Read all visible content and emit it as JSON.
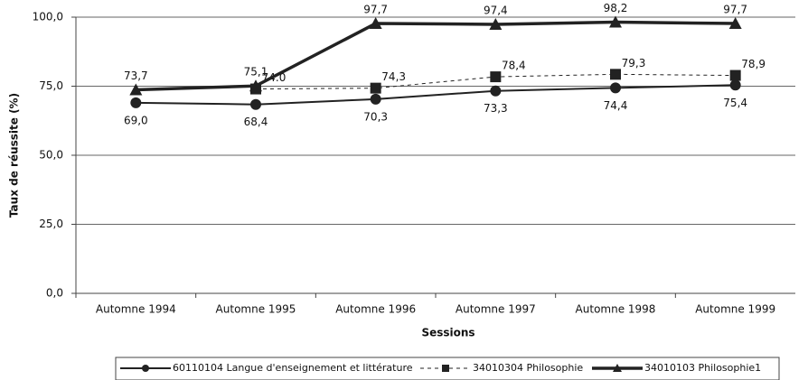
{
  "chart_data": {
    "type": "line",
    "y_label": "Taux de réussite (%)",
    "x_label": "Sessions",
    "categories": [
      "Automne 1994",
      "Automne 1995",
      "Automne 1996",
      "Automne 1997",
      "Automne 1998",
      "Automne 1999"
    ],
    "ylim": [
      0,
      100
    ],
    "yticks": [
      {
        "value": 0,
        "label": "0,0"
      },
      {
        "value": 25,
        "label": "25,0"
      },
      {
        "value": 50,
        "label": "50,0"
      },
      {
        "value": 75,
        "label": "75,0"
      },
      {
        "value": 100,
        "label": "100,0"
      }
    ],
    "grid": true,
    "legend": "bottom",
    "series": [
      {
        "name": "60110104 Langue d'enseignement et littérature",
        "color": "#222222",
        "marker": "circle",
        "style": "solid",
        "width": 2,
        "values": [
          69.0,
          68.4,
          70.3,
          73.3,
          74.4,
          75.4
        ],
        "value_labels": [
          "69,0",
          "68,4",
          "70,3",
          "73,3",
          "74,4",
          "75,4"
        ]
      },
      {
        "name": "34010304 Philosophie",
        "color": "#222222",
        "marker": "square",
        "style": "dashed",
        "width": 1,
        "values": [
          null,
          74.0,
          74.3,
          78.4,
          79.3,
          78.9
        ],
        "value_labels": [
          null,
          "74.0",
          "74,3",
          "78,4",
          "79,3",
          "78,9"
        ]
      },
      {
        "name": "34010103 Philosophie1",
        "color": "#222222",
        "marker": "triangle",
        "style": "solid",
        "width": 3.5,
        "values": [
          73.7,
          75.1,
          97.7,
          97.4,
          98.2,
          97.7
        ],
        "value_labels": [
          "73,7",
          "75,1",
          "97,7",
          "97,4",
          "98,2",
          "97,7"
        ]
      }
    ]
  }
}
